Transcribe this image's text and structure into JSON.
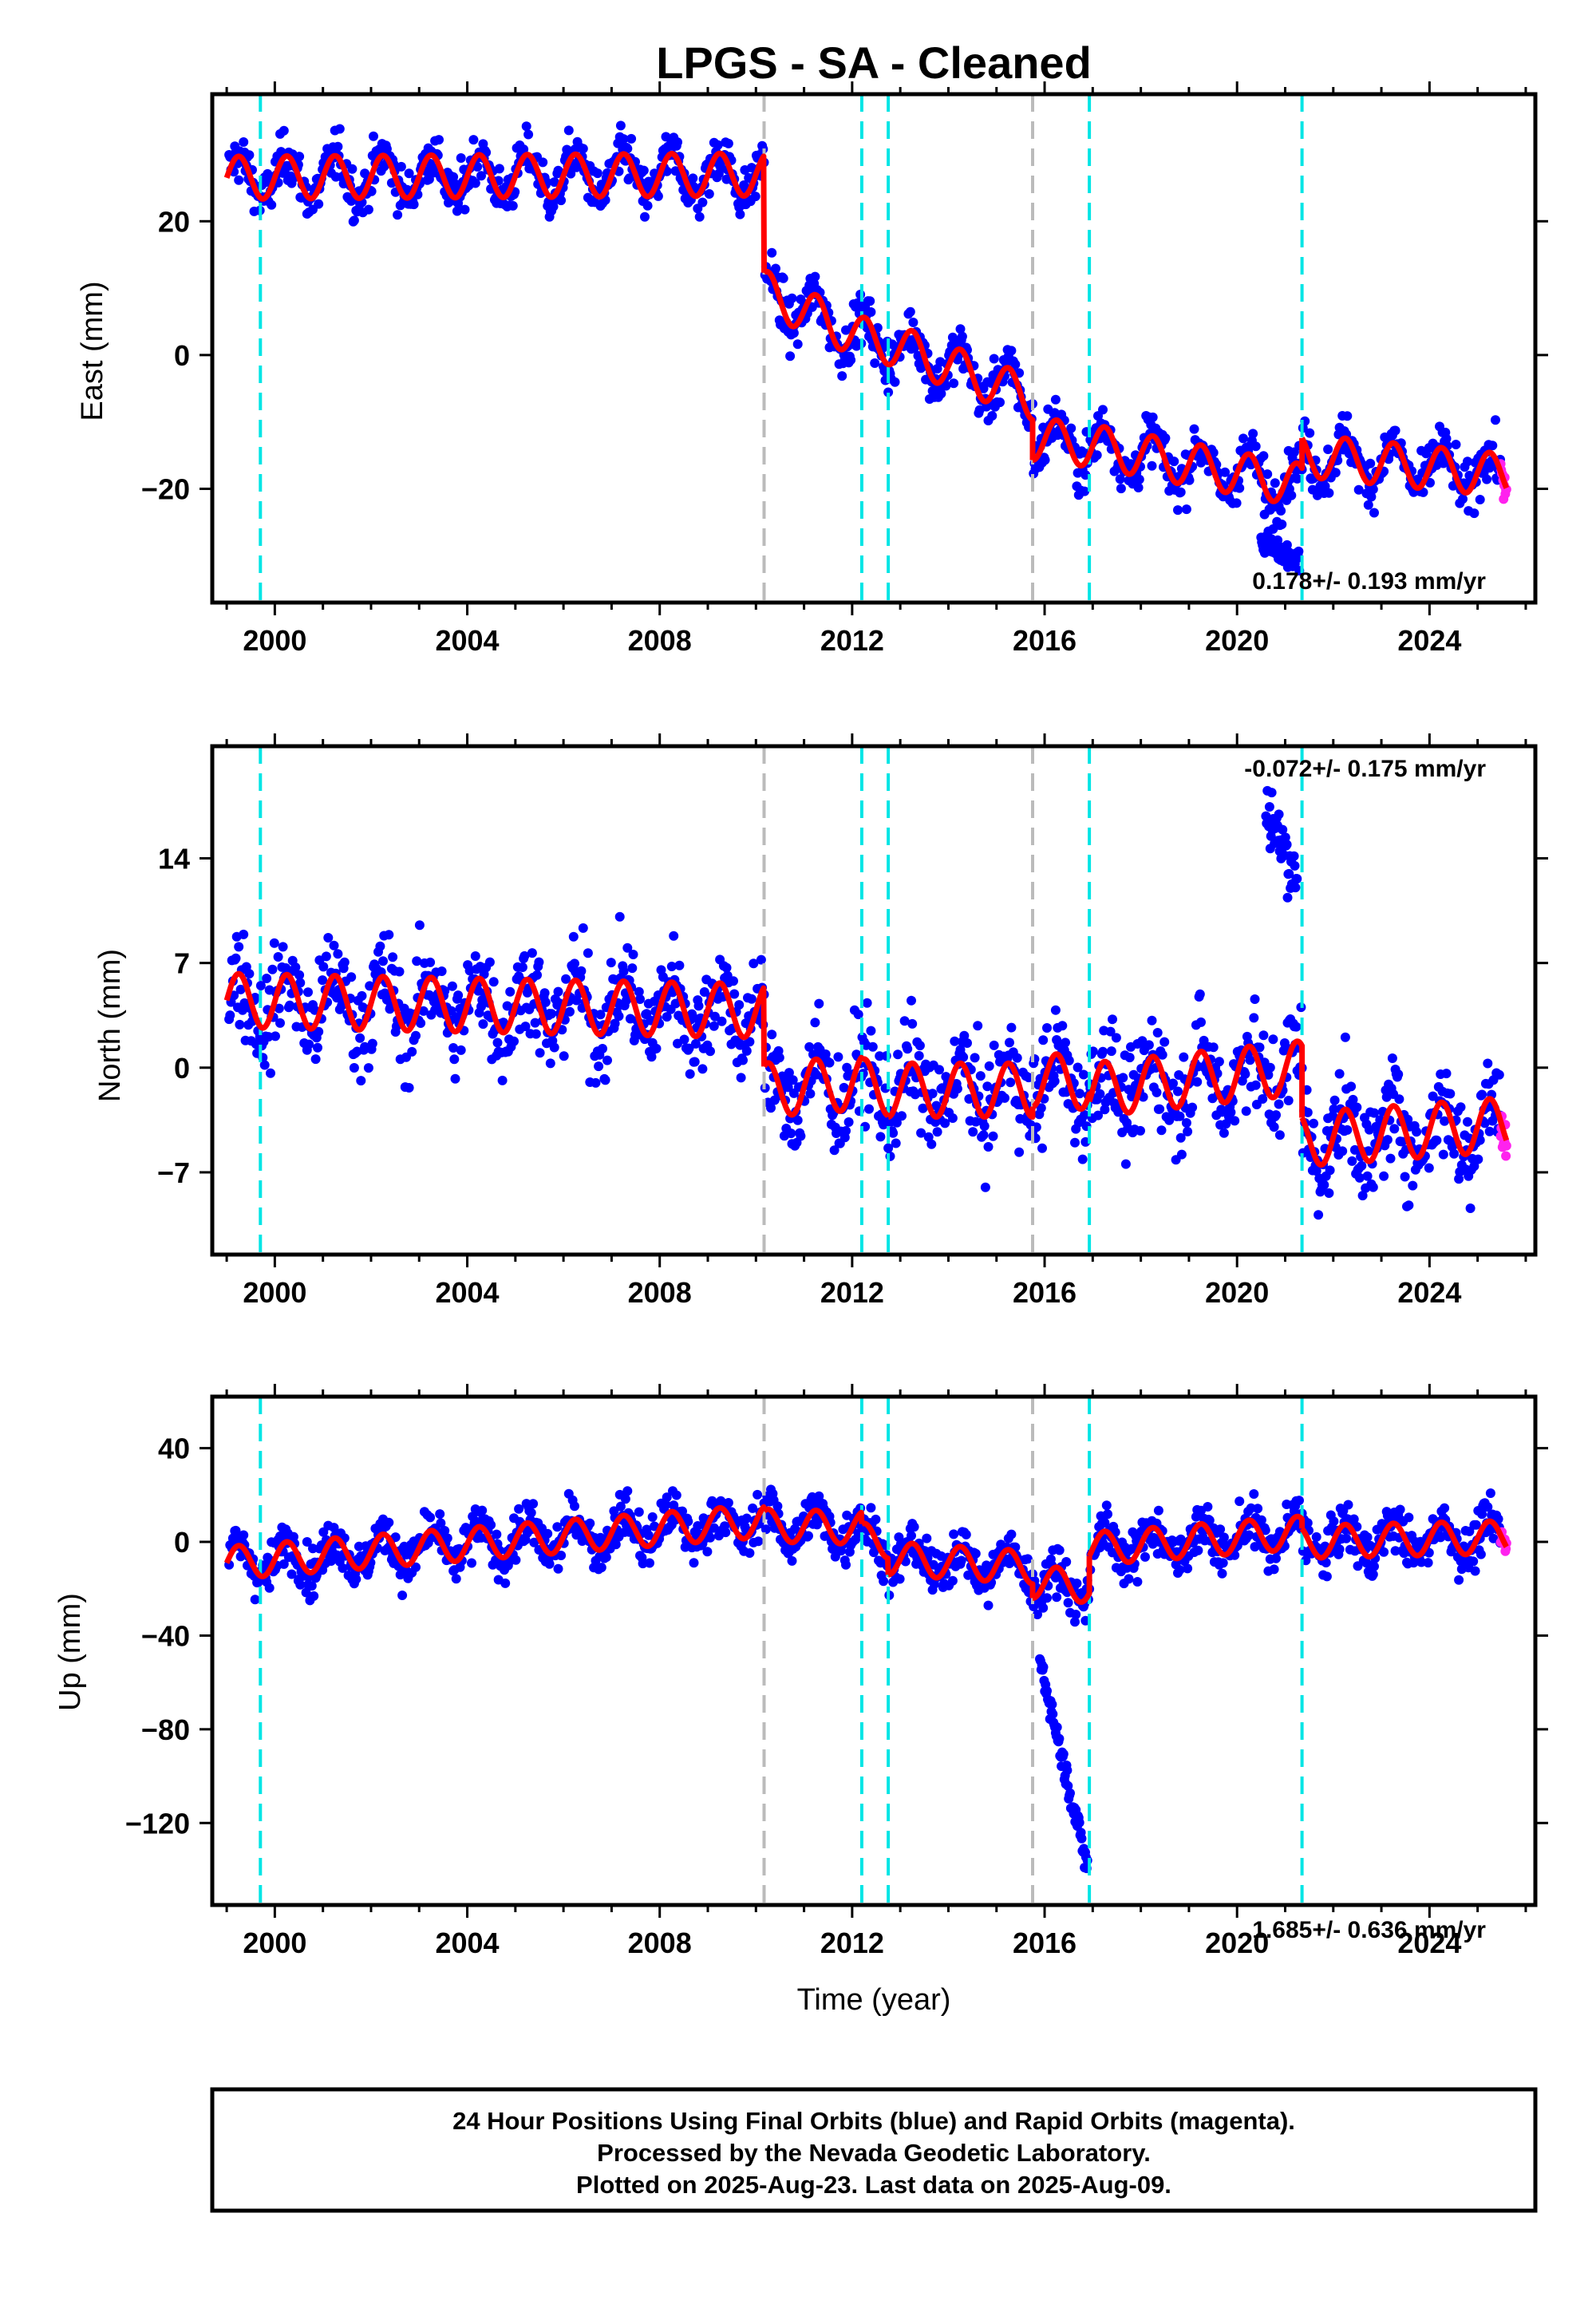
{
  "title": "LPGS  - SA - Cleaned",
  "xlabel": "Time (year)",
  "colors": {
    "final_orbits": "#0000ff",
    "rapid_orbits": "#ff22ee",
    "model": "#ff0000",
    "offset_equipment": "#00e5e5",
    "offset_other": "#bbbbbb"
  },
  "chart_data": [
    {
      "type": "scatter",
      "component": "east",
      "ylabel": "East (mm)",
      "rate": "0.178+/- 0.193 mm/yr",
      "xlim": [
        1998.7,
        2026.2
      ],
      "ylim": [
        -37,
        39
      ],
      "x_ticks": [
        2000,
        2004,
        2008,
        2012,
        2016,
        2020,
        2024
      ],
      "y_ticks": [
        {
          "value": 20,
          "label": "20"
        },
        {
          "value": 0,
          "label": "0"
        },
        {
          "value": -20,
          "label": "−20"
        }
      ],
      "offsets": [
        {
          "year": 1999.7,
          "kind": "equipment"
        },
        {
          "year": 2010.17,
          "kind": "other"
        },
        {
          "year": 2012.2,
          "kind": "equipment"
        },
        {
          "year": 2012.75,
          "kind": "equipment"
        },
        {
          "year": 2015.75,
          "kind": "other"
        },
        {
          "year": 2016.93,
          "kind": "equipment"
        },
        {
          "year": 2021.35,
          "kind": "equipment"
        }
      ],
      "model_levels": [
        {
          "start": 1999.0,
          "end": 2010.17,
          "value_start": 26.5,
          "value_end": 27.0
        },
        {
          "start": 2010.17,
          "end": 2012.2,
          "value_start": 9.5,
          "value_end": 2.5
        },
        {
          "start": 2012.2,
          "end": 2012.75,
          "value_start": 2.5,
          "value_end": 1.8
        },
        {
          "start": 2012.75,
          "end": 2015.75,
          "value_start": 1.8,
          "value_end": -6.5
        },
        {
          "start": 2015.75,
          "end": 2016.93,
          "value_start": -12.5,
          "value_end": -13.5
        },
        {
          "start": 2016.93,
          "end": 2021.35,
          "value_start": -13.5,
          "value_end": -19.5
        },
        {
          "start": 2021.35,
          "end": 2025.6,
          "value_start": -15.0,
          "value_end": -18.0
        }
      ],
      "seasonal_amplitude": 3.2,
      "scatter_noise": 2.6,
      "anomalies": [
        {
          "start": 2020.5,
          "end": 2021.3,
          "value_start": -28,
          "value_end": -31
        }
      ]
    },
    {
      "type": "scatter",
      "component": "north",
      "ylabel": "North (mm)",
      "rate": "-0.072+/- 0.175 mm/yr",
      "xlim": [
        1998.7,
        2026.2
      ],
      "ylim": [
        -12.5,
        21.5
      ],
      "x_ticks": [
        2000,
        2004,
        2008,
        2012,
        2016,
        2020,
        2024
      ],
      "y_ticks": [
        {
          "value": 14,
          "label": "14"
        },
        {
          "value": 7,
          "label": "7"
        },
        {
          "value": 0,
          "label": "0"
        },
        {
          "value": -7,
          "label": "−7"
        }
      ],
      "offsets": [
        {
          "year": 1999.7,
          "kind": "equipment"
        },
        {
          "year": 2010.17,
          "kind": "other"
        },
        {
          "year": 2012.2,
          "kind": "equipment"
        },
        {
          "year": 2012.75,
          "kind": "equipment"
        },
        {
          "year": 2015.75,
          "kind": "other"
        },
        {
          "year": 2016.93,
          "kind": "equipment"
        },
        {
          "year": 2021.35,
          "kind": "equipment"
        }
      ],
      "model_levels": [
        {
          "start": 1999.0,
          "end": 2010.17,
          "value_start": 4.5,
          "value_end": 3.8
        },
        {
          "start": 2010.17,
          "end": 2012.2,
          "value_start": -1.5,
          "value_end": -1.0
        },
        {
          "start": 2012.2,
          "end": 2012.75,
          "value_start": -1.2,
          "value_end": -1.4
        },
        {
          "start": 2012.75,
          "end": 2015.75,
          "value_start": -1.5,
          "value_end": -1.5
        },
        {
          "start": 2015.75,
          "end": 2016.93,
          "value_start": -0.8,
          "value_end": -1.0
        },
        {
          "start": 2016.93,
          "end": 2021.35,
          "value_start": -1.5,
          "value_end": 0.0
        },
        {
          "start": 2021.35,
          "end": 2025.6,
          "value_start": -4.8,
          "value_end": -3.8
        }
      ],
      "seasonal_amplitude": 1.8,
      "scatter_noise": 2.4,
      "anomalies": [
        {
          "start": 2020.6,
          "end": 2021.25,
          "value_start": 17.5,
          "value_end": 12.5
        }
      ]
    },
    {
      "type": "scatter",
      "component": "up",
      "ylabel": "Up (mm)",
      "rate": "1.685+/- 0.636 mm/yr",
      "xlim": [
        1998.7,
        2026.2
      ],
      "ylim": [
        -155,
        62
      ],
      "x_ticks": [
        2000,
        2004,
        2008,
        2012,
        2016,
        2020,
        2024
      ],
      "y_ticks": [
        {
          "value": 40,
          "label": "40"
        },
        {
          "value": 0,
          "label": "0"
        },
        {
          "value": -40,
          "label": "−40"
        },
        {
          "value": -80,
          "label": "−80"
        },
        {
          "value": -120,
          "label": "−120"
        }
      ],
      "offsets": [
        {
          "year": 1999.7,
          "kind": "equipment"
        },
        {
          "year": 2010.17,
          "kind": "other"
        },
        {
          "year": 2012.2,
          "kind": "equipment"
        },
        {
          "year": 2012.75,
          "kind": "equipment"
        },
        {
          "year": 2015.75,
          "kind": "other"
        },
        {
          "year": 2016.93,
          "kind": "equipment"
        },
        {
          "year": 2021.35,
          "kind": "equipment"
        }
      ],
      "model_levels": [
        {
          "start": 1999.0,
          "end": 2010.17,
          "value_start": -9.0,
          "value_end": 9.0
        },
        {
          "start": 2010.17,
          "end": 2012.2,
          "value_start": 7.0,
          "value_end": 6.0
        },
        {
          "start": 2012.2,
          "end": 2012.75,
          "value_start": 1.0,
          "value_end": 0.0
        },
        {
          "start": 2012.75,
          "end": 2015.75,
          "value_start": -7.0,
          "value_end": -11.0
        },
        {
          "start": 2015.75,
          "end": 2016.93,
          "value_start": -17.0,
          "value_end": -19.0
        },
        {
          "start": 2016.93,
          "end": 2021.35,
          "value_start": -3.0,
          "value_end": 4.0
        },
        {
          "start": 2021.35,
          "end": 2025.6,
          "value_start": 0.0,
          "value_end": 2.0
        }
      ],
      "seasonal_amplitude": 7.0,
      "scatter_noise": 7.0,
      "anomalies": [
        {
          "start": 2015.9,
          "end": 2016.9,
          "value_start": -50,
          "value_end": -140
        }
      ]
    }
  ],
  "footer": {
    "line1": "24 Hour Positions Using Final Orbits (blue) and Rapid Orbits (magenta).",
    "line2": "Processed by the Nevada Geodetic Laboratory.",
    "line3": "Plotted on 2025-Aug-23. Last data on 2025-Aug-09."
  }
}
